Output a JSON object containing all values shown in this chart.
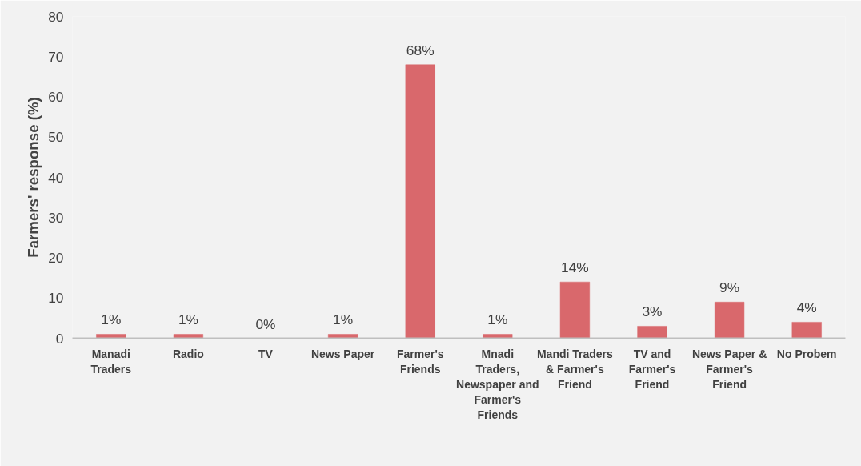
{
  "chart_data": {
    "type": "bar",
    "ylabel": "Farmers' response (%)",
    "categories": [
      "Manadi Traders",
      "Radio",
      "TV",
      "News Paper",
      "Farmer's Friends",
      "Mnadi Traders, Newspaper and Farmer's Friends",
      "Mandi Traders & Farmer's Friend",
      "TV and Farmer's Friend",
      "News Paper & Farmer's Friend",
      "No Probem"
    ],
    "values": [
      1,
      1,
      0,
      1,
      68,
      1,
      14,
      3,
      9,
      4
    ],
    "value_labels": [
      "1%",
      "1%",
      "0%",
      "1%",
      "68%",
      "1%",
      "14%",
      "3%",
      "9%",
      "4%"
    ],
    "color": "#d9686c",
    "ylim": [
      0,
      80
    ],
    "yticks": [
      0,
      10,
      20,
      30,
      40,
      50,
      60,
      70,
      80
    ],
    "grid": false
  }
}
